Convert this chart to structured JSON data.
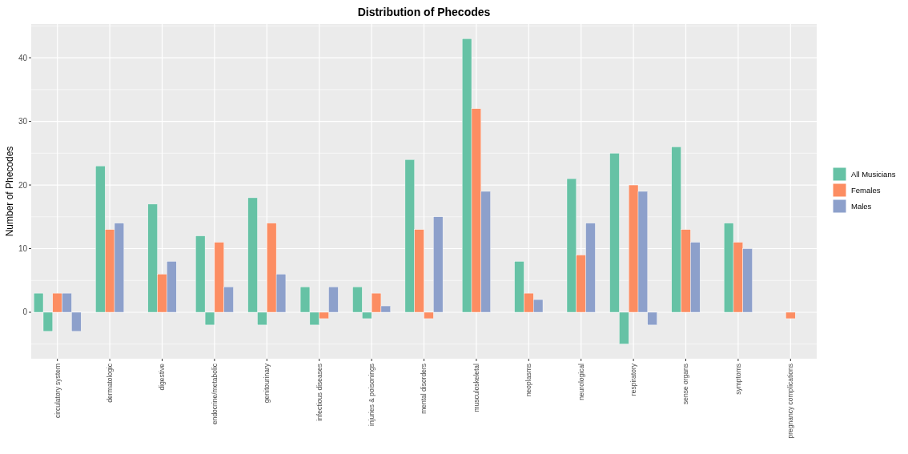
{
  "chart_data": {
    "type": "bar",
    "title": "Distribution of Phecodes",
    "ylabel": "Number of Phecodes",
    "categories": [
      "circulatory system",
      "dermatologic",
      "digestive",
      "endocrine/metabolic",
      "genitourinary",
      "infectious diseases",
      "injuries & poisonings",
      "mental disorders",
      "musculoskeletal",
      "neoplasms",
      "neurological",
      "respiratory",
      "sense organs",
      "symptoms",
      "pregnancy complications"
    ],
    "series": [
      {
        "name": "All Musicians",
        "color": "#66c2a5",
        "values": [
          3,
          23,
          17,
          12,
          18,
          4,
          4,
          24,
          43,
          8,
          21,
          25,
          26,
          14,
          null
        ]
      },
      {
        "color": "#66c2a5",
        "values": [
          -3,
          null,
          null,
          -2,
          -2,
          -2,
          -1,
          null,
          null,
          null,
          null,
          -5,
          null,
          null,
          null
        ]
      },
      {
        "name": "Females",
        "color": "#fc8d62",
        "values": [
          3,
          13,
          6,
          11,
          14,
          null,
          3,
          13,
          32,
          3,
          9,
          20,
          13,
          11,
          null
        ]
      },
      {
        "color": "#fc8d62",
        "values": [
          null,
          null,
          null,
          null,
          null,
          -1,
          null,
          -1,
          null,
          null,
          null,
          null,
          null,
          null,
          -1
        ]
      },
      {
        "name": "Males",
        "color": "#8da0cb",
        "values": [
          3,
          14,
          8,
          4,
          6,
          4,
          1,
          15,
          19,
          2,
          14,
          19,
          11,
          10,
          null
        ]
      },
      {
        "color": "#8da0cb",
        "values": [
          -3,
          null,
          null,
          null,
          null,
          null,
          null,
          null,
          null,
          null,
          null,
          -2,
          null,
          null,
          null
        ]
      }
    ],
    "ylim": [
      -7.3,
      45.3
    ],
    "yticks": [
      0,
      10,
      20,
      30,
      40
    ],
    "grid": true,
    "legend": "right"
  }
}
